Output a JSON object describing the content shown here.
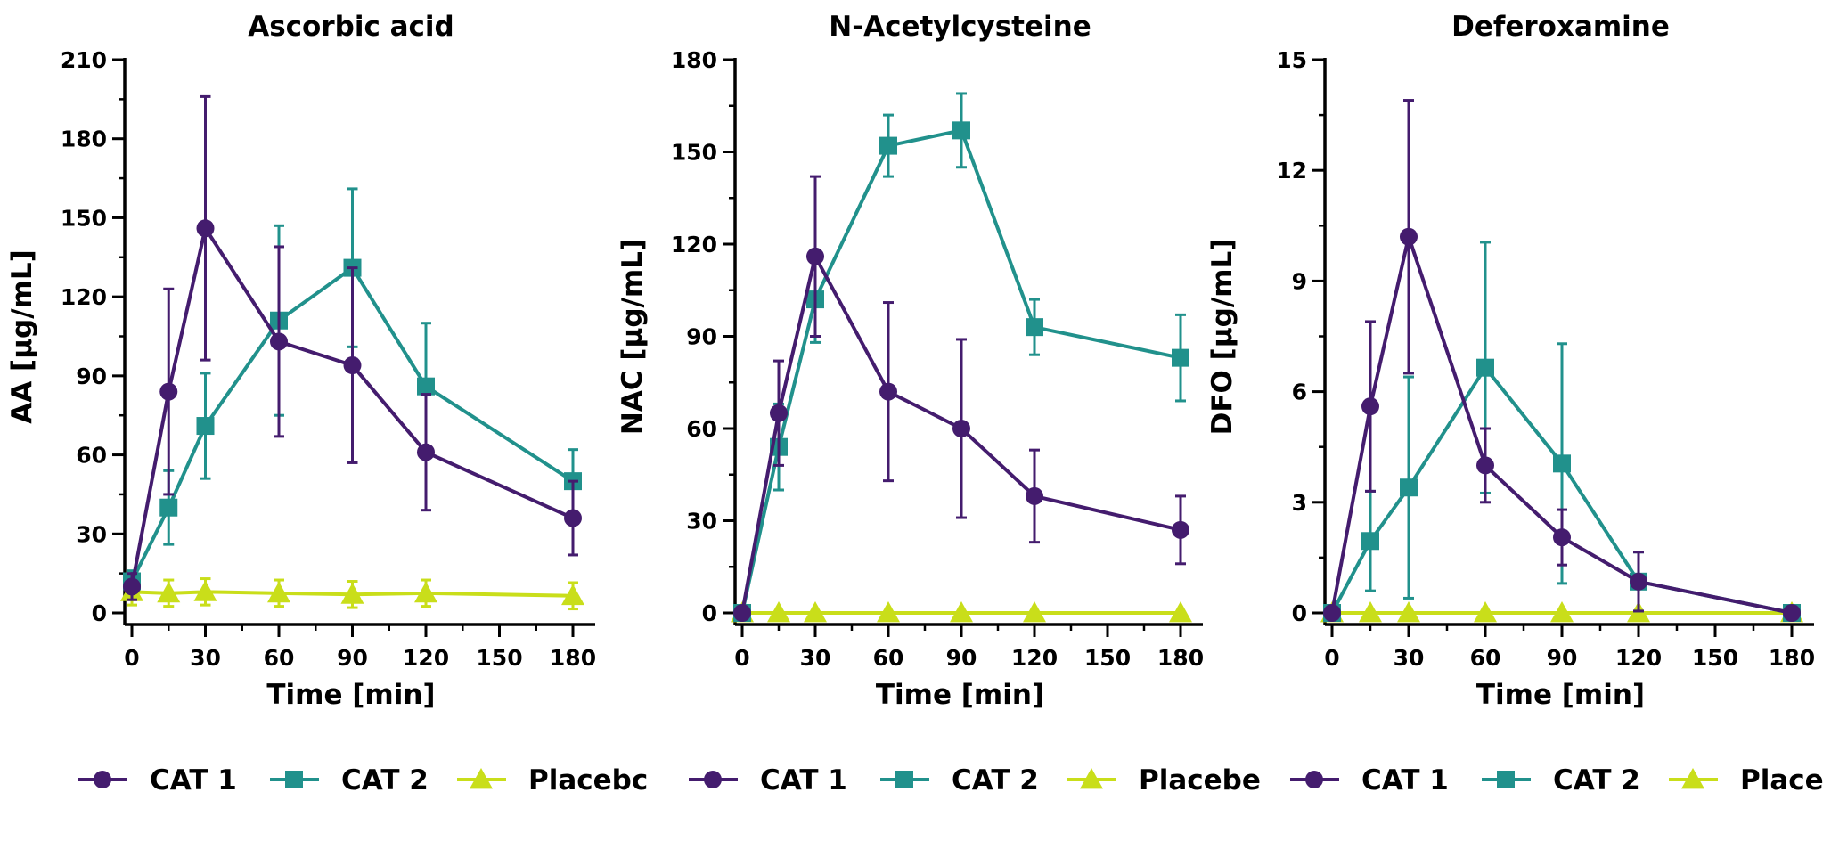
{
  "chart_data": [
    {
      "type": "line",
      "title": "Ascorbic acid",
      "xlabel": "Time [min]",
      "ylabel": "AA [µg/mL]",
      "xlim": [
        0,
        180
      ],
      "ylim": [
        0,
        210
      ],
      "xticks": [
        0,
        30,
        60,
        90,
        120,
        150,
        180
      ],
      "yticks": [
        0,
        30,
        60,
        90,
        120,
        150,
        180,
        210
      ],
      "x_minor_step": 15,
      "y_minor_step": 15,
      "series": [
        {
          "name": "CAT 1",
          "marker": "circle",
          "color": "#441c6e",
          "x": [
            0,
            15,
            30,
            60,
            90,
            120,
            180
          ],
          "y": [
            10,
            84,
            146,
            103,
            94,
            61,
            36
          ],
          "err": [
            5,
            39,
            50,
            36,
            37,
            22,
            14
          ]
        },
        {
          "name": "CAT 2",
          "marker": "square",
          "color": "#21918c",
          "x": [
            0,
            15,
            30,
            60,
            90,
            120,
            180
          ],
          "y": [
            12,
            40,
            71,
            111,
            131,
            86,
            50
          ],
          "err": [
            4,
            14,
            20,
            36,
            30,
            24,
            12
          ]
        },
        {
          "name": "Placebc",
          "marker": "triangle",
          "color": "#c9de1a",
          "x": [
            0,
            15,
            30,
            60,
            90,
            120,
            180
          ],
          "y": [
            8,
            7.5,
            8,
            7.5,
            7,
            7.5,
            6.5
          ],
          "err": [
            5,
            5,
            5,
            5,
            5,
            5,
            5
          ]
        }
      ]
    },
    {
      "type": "line",
      "title": "N-Acetylcysteine",
      "xlabel": "Time [min]",
      "ylabel": "NAC [µg/mL]",
      "xlim": [
        0,
        180
      ],
      "ylim": [
        0,
        180
      ],
      "xticks": [
        0,
        30,
        60,
        90,
        120,
        150,
        180
      ],
      "yticks": [
        0,
        30,
        60,
        90,
        120,
        150,
        180
      ],
      "x_minor_step": 15,
      "y_minor_step": 15,
      "series": [
        {
          "name": "CAT 1",
          "marker": "circle",
          "color": "#441c6e",
          "x": [
            0,
            15,
            30,
            60,
            90,
            120,
            180
          ],
          "y": [
            0,
            65,
            116,
            72,
            60,
            38,
            27
          ],
          "err": [
            0,
            17,
            26,
            29,
            29,
            15,
            11
          ]
        },
        {
          "name": "CAT 2",
          "marker": "square",
          "color": "#21918c",
          "x": [
            0,
            15,
            30,
            60,
            90,
            120,
            180
          ],
          "y": [
            0,
            54,
            102,
            152,
            157,
            93,
            83
          ],
          "err": [
            0,
            14,
            14,
            10,
            12,
            9,
            14
          ]
        },
        {
          "name": "Placebc",
          "marker": "triangle",
          "color": "#c9de1a",
          "x": [
            0,
            15,
            30,
            60,
            90,
            120,
            180
          ],
          "y": [
            0,
            0,
            0,
            0,
            0,
            0,
            0
          ],
          "err": [
            0,
            0,
            0,
            0,
            0,
            0,
            0
          ]
        }
      ]
    },
    {
      "type": "line",
      "title": "Deferoxamine",
      "xlabel": "Time [min]",
      "ylabel": "DFO [µg/mL]",
      "xlim": [
        0,
        180
      ],
      "ylim": [
        0,
        15
      ],
      "xticks": [
        0,
        30,
        60,
        90,
        120,
        150,
        180
      ],
      "yticks": [
        0,
        3,
        6,
        9,
        12,
        15
      ],
      "x_minor_step": 15,
      "y_minor_step": 1.5,
      "series": [
        {
          "name": "CAT 1",
          "marker": "circle",
          "color": "#441c6e",
          "x": [
            0,
            15,
            30,
            60,
            90,
            120,
            180
          ],
          "y": [
            0,
            5.6,
            10.2,
            4.0,
            2.05,
            0.85,
            0
          ],
          "err": [
            0,
            2.3,
            3.7,
            1.0,
            0.75,
            0.8,
            0
          ]
        },
        {
          "name": "CAT 2",
          "marker": "square",
          "color": "#21918c",
          "x": [
            0,
            15,
            30,
            60,
            90,
            120,
            180
          ],
          "y": [
            0,
            1.95,
            3.4,
            6.65,
            4.05,
            0.85,
            0
          ],
          "err": [
            0,
            1.35,
            3.0,
            3.4,
            3.25,
            0.8,
            0
          ]
        },
        {
          "name": "Placebc",
          "marker": "triangle",
          "color": "#c9de1a",
          "x": [
            0,
            15,
            30,
            60,
            90,
            120,
            180
          ],
          "y": [
            0,
            0,
            0,
            0,
            0,
            0,
            0
          ],
          "err": [
            0,
            0,
            0,
            0,
            0,
            0,
            0
          ]
        }
      ]
    }
  ],
  "legends": [
    {
      "items": [
        "CAT 1",
        "CAT 2",
        "Placebc"
      ]
    },
    {
      "items": [
        "CAT 1",
        "CAT 2",
        "Placebe"
      ]
    },
    {
      "items": [
        "CAT 1",
        "CAT 2",
        "Place"
      ]
    }
  ]
}
